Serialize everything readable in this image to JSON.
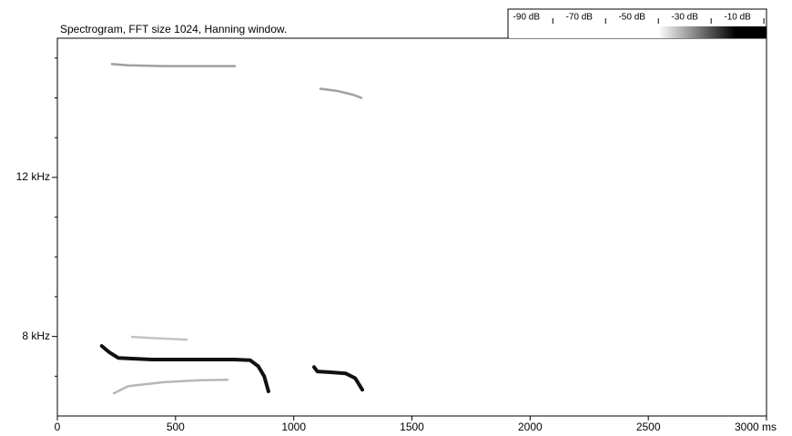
{
  "chart_data": {
    "type": "spectrogram",
    "title": "Spectrogram, FFT size 1024, Hanning window.",
    "xlim": [
      0,
      3000
    ],
    "xticks": [
      0,
      500,
      1000,
      1500,
      2000,
      2500,
      {
        "value": 3000,
        "label": "3000 ms"
      }
    ],
    "ylim": [
      6,
      15.5
    ],
    "yticks": [
      {
        "value": 8,
        "label": "8 kHz"
      },
      {
        "value": 12,
        "label": "12 kHz"
      }
    ],
    "yminor": [
      7,
      9,
      10,
      11,
      13,
      14,
      15
    ],
    "colorbar": {
      "lim": [
        -97,
        1
      ],
      "ticks": [
        {
          "value": -90,
          "label": "-90 dB"
        },
        {
          "value": -70,
          "label": "-70 dB"
        },
        {
          "value": -50,
          "label": "-50 dB"
        },
        {
          "value": -30,
          "label": "-30 dB"
        },
        {
          "value": -10,
          "label": "-10 dB"
        }
      ]
    },
    "series": [
      {
        "color": "#111111",
        "x": [
          188,
          220,
          258,
          400,
          600,
          750,
          816,
          850,
          875,
          893
        ],
        "values": [
          7.76,
          7.6,
          7.46,
          7.42,
          7.42,
          7.42,
          7.4,
          7.25,
          7.0,
          6.62
        ]
      },
      {
        "color": "#111111",
        "x": [
          1086,
          1100,
          1150,
          1220,
          1260,
          1290
        ],
        "values": [
          7.23,
          7.12,
          7.1,
          7.07,
          6.95,
          6.66
        ]
      },
      {
        "color": "#777777",
        "x": [
          231,
          300,
          450,
          600,
          751
        ],
        "values": [
          14.85,
          14.82,
          14.8,
          14.8,
          14.8
        ]
      },
      {
        "color": "#777777",
        "x": [
          1113,
          1180,
          1250,
          1286
        ],
        "values": [
          14.23,
          14.18,
          14.08,
          14.0
        ]
      },
      {
        "color": "#999999",
        "x": [
          239,
          300,
          450,
          600,
          720
        ],
        "values": [
          6.57,
          6.75,
          6.85,
          6.9,
          6.91
        ]
      },
      {
        "color": "#aaaaaa",
        "x": [
          316,
          400,
          547
        ],
        "values": [
          7.99,
          7.96,
          7.92
        ]
      }
    ]
  }
}
